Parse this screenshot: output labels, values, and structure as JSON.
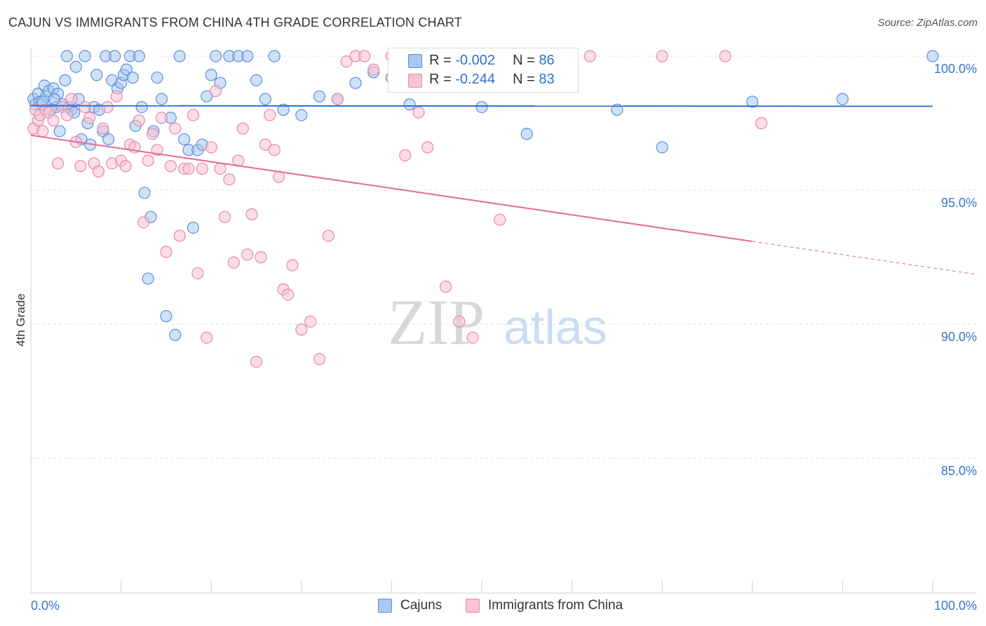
{
  "title": "CAJUN VS IMMIGRANTS FROM CHINA 4TH GRADE CORRELATION CHART",
  "source": "Source: ZipAtlas.com",
  "watermark": {
    "zip": "ZIP",
    "atlas": "atlas"
  },
  "stats": [
    {
      "r_label": "R = ",
      "r_value": "-0.002",
      "n_label": "N = ",
      "n_value": "86",
      "color": "#a9c8f0",
      "border": "#5b8fd9"
    },
    {
      "r_label": "R = ",
      "r_value": "-0.244",
      "n_label": "N = ",
      "n_value": "83",
      "color": "#f8c3d3",
      "border": "#e889a8"
    }
  ],
  "legend": [
    {
      "label": "Cajuns",
      "color": "#a9c8f0",
      "border": "#5b8fd9"
    },
    {
      "label": "Immigrants from China",
      "color": "#f8c3d3",
      "border": "#e889a8"
    }
  ],
  "chart_data": {
    "type": "scatter",
    "title": "CAJUN VS IMMIGRANTS FROM CHINA 4TH GRADE CORRELATION CHART",
    "xlabel": "",
    "ylabel": "4th Grade",
    "xlim": [
      0,
      100
    ],
    "ylim": [
      80.5,
      100.5
    ],
    "x_tick_labels": [
      "0.0%",
      "100.0%"
    ],
    "y_ticks": [
      100,
      95,
      90,
      85
    ],
    "y_tick_labels": [
      "100.0%",
      "95.0%",
      "90.0%",
      "85.0%"
    ],
    "grid": true,
    "legend_position": "bottom",
    "series": [
      {
        "name": "Cajuns",
        "color": "#5b8fd9",
        "fill": "#a9c8f0",
        "trend": {
          "x": [
            0,
            100
          ],
          "y": [
            98.15,
            98.13
          ],
          "dashed_from": null
        },
        "x": [
          0.3,
          0.5,
          0.8,
          1.0,
          1.2,
          1.5,
          1.7,
          2.0,
          2.2,
          2.5,
          2.8,
          3.0,
          3.2,
          3.5,
          3.8,
          4.0,
          4.2,
          4.5,
          4.8,
          5.0,
          5.3,
          5.6,
          6.0,
          6.3,
          6.6,
          7.0,
          7.3,
          7.6,
          8.0,
          8.3,
          8.6,
          9.0,
          9.3,
          9.6,
          10.0,
          10.3,
          10.6,
          11.0,
          11.3,
          11.6,
          12.0,
          12.3,
          12.6,
          13.0,
          13.3,
          13.6,
          14.0,
          14.5,
          15.0,
          15.5,
          16.0,
          16.5,
          17.0,
          17.5,
          18.0,
          18.5,
          19.0,
          19.5,
          20.0,
          20.5,
          21.0,
          22.0,
          23.0,
          24.0,
          25.0,
          26.0,
          27.0,
          28.0,
          30.0,
          32.0,
          34.0,
          36.0,
          38.0,
          40.0,
          42.0,
          45.0,
          50.0,
          55.0,
          60.0,
          65.0,
          70.0,
          80.0,
          90.0,
          100.0,
          1.3,
          2.6
        ],
        "y": [
          98.4,
          98.2,
          98.6,
          98.3,
          98.2,
          98.9,
          98.5,
          98.7,
          98.0,
          98.8,
          98.1,
          98.6,
          97.2,
          98.2,
          99.1,
          100.0,
          98.1,
          98.0,
          97.9,
          99.6,
          98.4,
          96.9,
          100.0,
          97.5,
          96.7,
          98.1,
          99.3,
          98.0,
          97.2,
          100.0,
          96.9,
          99.1,
          100.0,
          98.8,
          99.0,
          99.3,
          99.5,
          100.0,
          99.2,
          97.4,
          100.0,
          98.1,
          94.9,
          91.7,
          94.0,
          97.2,
          99.2,
          98.4,
          90.3,
          97.7,
          89.6,
          100.0,
          96.9,
          96.5,
          93.6,
          96.5,
          96.7,
          98.5,
          99.3,
          100.0,
          99.0,
          100.0,
          100.0,
          100.0,
          99.1,
          98.4,
          100.0,
          98.0,
          97.8,
          98.5,
          98.4,
          99.0,
          99.4,
          99.2,
          98.2,
          99.3,
          98.1,
          97.1,
          99.2,
          98.0,
          96.6,
          98.3,
          98.4,
          100.0,
          98.3,
          98.4
        ]
      },
      {
        "name": "Immigrants from China",
        "color": "#e889a8",
        "fill": "#f8c3d3",
        "trend": {
          "x": [
            0,
            100
          ],
          "y": [
            97.05,
            92.1
          ],
          "dashed_from": 80
        },
        "x": [
          0.3,
          0.5,
          0.8,
          1.0,
          1.3,
          1.6,
          2.0,
          2.5,
          3.0,
          3.5,
          4.0,
          4.5,
          5.0,
          5.5,
          6.0,
          6.5,
          7.0,
          7.5,
          8.0,
          8.5,
          9.0,
          9.5,
          10.0,
          10.5,
          11.0,
          11.5,
          12.0,
          12.5,
          13.0,
          13.5,
          14.0,
          14.5,
          15.0,
          15.5,
          16.0,
          16.5,
          17.0,
          17.5,
          18.0,
          18.5,
          19.0,
          19.5,
          20.0,
          20.5,
          21.0,
          21.5,
          22.0,
          22.5,
          23.0,
          23.5,
          24.0,
          24.5,
          25.0,
          25.5,
          26.0,
          26.5,
          27.0,
          27.5,
          28.0,
          28.5,
          29.0,
          30.0,
          31.0,
          32.0,
          33.0,
          34.0,
          35.0,
          36.0,
          37.0,
          38.0,
          40.0,
          41.5,
          43.0,
          44.0,
          46.0,
          47.5,
          49.0,
          52.0,
          58.0,
          62.0,
          70.0,
          77.0,
          81.0
        ],
        "y": [
          97.3,
          98.0,
          97.6,
          97.8,
          97.2,
          98.0,
          97.9,
          97.6,
          96.0,
          98.1,
          97.8,
          98.4,
          96.8,
          95.9,
          98.1,
          97.7,
          96.0,
          95.7,
          97.3,
          98.1,
          96.0,
          98.5,
          96.1,
          95.9,
          96.7,
          96.6,
          97.6,
          93.8,
          96.1,
          97.1,
          96.5,
          97.7,
          92.7,
          95.9,
          97.3,
          93.3,
          95.8,
          95.8,
          97.8,
          91.9,
          95.8,
          89.5,
          96.6,
          98.7,
          95.8,
          94.0,
          95.4,
          92.3,
          96.1,
          97.3,
          92.6,
          94.1,
          88.6,
          92.5,
          96.7,
          97.8,
          96.5,
          95.5,
          91.3,
          91.1,
          92.2,
          89.8,
          90.1,
          88.7,
          93.3,
          98.4,
          99.8,
          100.0,
          100.0,
          99.5,
          100.0,
          96.3,
          97.9,
          96.6,
          91.4,
          90.1,
          89.5,
          93.9,
          100.0,
          100.0,
          100.0,
          100.0,
          97.5
        ]
      }
    ]
  }
}
